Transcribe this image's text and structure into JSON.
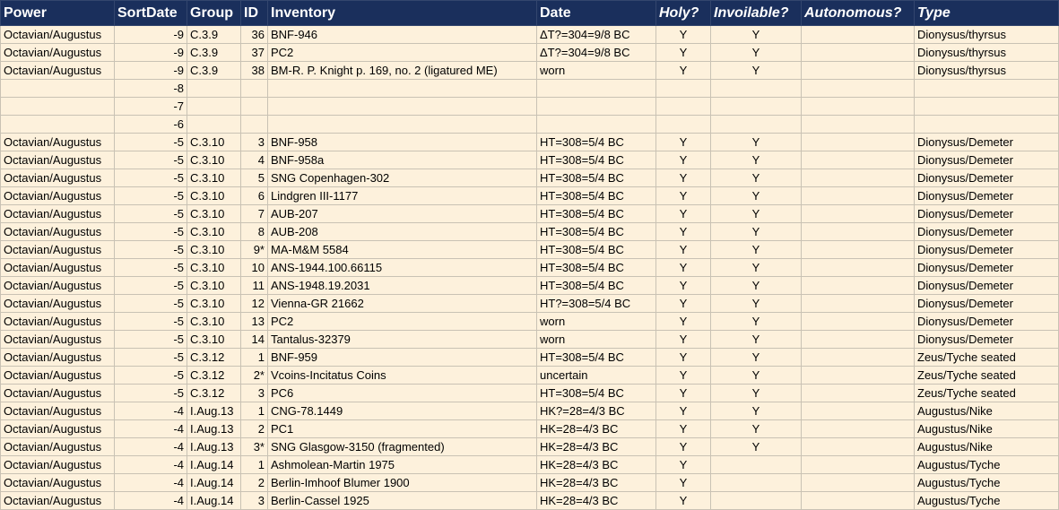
{
  "table": {
    "columns": [
      "Power",
      "SortDate",
      "Group",
      "ID",
      "Inventory",
      "Date",
      "Holy?",
      "Invoilable?",
      "Autonomous?",
      "Type"
    ],
    "rows": [
      [
        "Octavian/Augustus",
        -9,
        "C.3.9",
        36,
        "BNF-946",
        "ΔT?=304=9/8 BC",
        "Y",
        "Y",
        null,
        "Dionysus/thyrsus"
      ],
      [
        "Octavian/Augustus",
        -9,
        "C.3.9",
        37,
        "PC2",
        "ΔT?=304=9/8 BC",
        "Y",
        "Y",
        null,
        "Dionysus/thyrsus"
      ],
      [
        "Octavian/Augustus",
        -9,
        "C.3.9",
        38,
        "BM-R. P. Knight p. 169, no. 2 (ligatured ME)",
        "worn",
        "Y",
        "Y",
        null,
        "Dionysus/thyrsus"
      ],
      [
        null,
        -8,
        null,
        null,
        null,
        null,
        null,
        null,
        null,
        null
      ],
      [
        null,
        -7,
        null,
        null,
        null,
        null,
        null,
        null,
        null,
        null
      ],
      [
        null,
        -6,
        null,
        null,
        null,
        null,
        null,
        null,
        null,
        null
      ],
      [
        "Octavian/Augustus",
        -5,
        "C.3.10",
        3,
        "BNF-958",
        "HT=308=5/4 BC",
        "Y",
        "Y",
        null,
        "Dionysus/Demeter"
      ],
      [
        "Octavian/Augustus",
        -5,
        "C.3.10",
        4,
        "BNF-958a",
        "HT=308=5/4 BC",
        "Y",
        "Y",
        null,
        "Dionysus/Demeter"
      ],
      [
        "Octavian/Augustus",
        -5,
        "C.3.10",
        5,
        "SNG Copenhagen-302",
        "HT=308=5/4 BC",
        "Y",
        "Y",
        null,
        "Dionysus/Demeter"
      ],
      [
        "Octavian/Augustus",
        -5,
        "C.3.10",
        6,
        "Lindgren III-1177",
        "HT=308=5/4 BC",
        "Y",
        "Y",
        null,
        "Dionysus/Demeter"
      ],
      [
        "Octavian/Augustus",
        -5,
        "C.3.10",
        7,
        "AUB-207",
        "HT=308=5/4 BC",
        "Y",
        "Y",
        null,
        "Dionysus/Demeter"
      ],
      [
        "Octavian/Augustus",
        -5,
        "C.3.10",
        8,
        "AUB-208",
        "HT=308=5/4 BC",
        "Y",
        "Y",
        null,
        "Dionysus/Demeter"
      ],
      [
        "Octavian/Augustus",
        -5,
        "C.3.10",
        "9*",
        "MA-M&M 5584",
        "HT=308=5/4 BC",
        "Y",
        "Y",
        null,
        "Dionysus/Demeter"
      ],
      [
        "Octavian/Augustus",
        -5,
        "C.3.10",
        10,
        "ANS-1944.100.66115",
        "HT=308=5/4 BC",
        "Y",
        "Y",
        null,
        "Dionysus/Demeter"
      ],
      [
        "Octavian/Augustus",
        -5,
        "C.3.10",
        11,
        "ANS-1948.19.2031",
        "HT=308=5/4 BC",
        "Y",
        "Y",
        null,
        "Dionysus/Demeter"
      ],
      [
        "Octavian/Augustus",
        -5,
        "C.3.10",
        12,
        "Vienna-GR 21662",
        "HT?=308=5/4 BC",
        "Y",
        "Y",
        null,
        "Dionysus/Demeter"
      ],
      [
        "Octavian/Augustus",
        -5,
        "C.3.10",
        13,
        "PC2",
        "worn",
        "Y",
        "Y",
        null,
        "Dionysus/Demeter"
      ],
      [
        "Octavian/Augustus",
        -5,
        "C.3.10",
        14,
        "Tantalus-32379",
        "worn",
        "Y",
        "Y",
        null,
        "Dionysus/Demeter"
      ],
      [
        "Octavian/Augustus",
        -5,
        "C.3.12",
        1,
        "BNF-959",
        "HT=308=5/4 BC",
        "Y",
        "Y",
        null,
        "Zeus/Tyche seated"
      ],
      [
        "Octavian/Augustus",
        -5,
        "C.3.12",
        "2*",
        "Vcoins-Incitatus Coins",
        "uncertain",
        "Y",
        "Y",
        null,
        "Zeus/Tyche seated"
      ],
      [
        "Octavian/Augustus",
        -5,
        "C.3.12",
        3,
        "PC6",
        "HT=308=5/4 BC",
        "Y",
        "Y",
        null,
        "Zeus/Tyche seated"
      ],
      [
        "Octavian/Augustus",
        -4,
        "I.Aug.13",
        1,
        "CNG-78.1449",
        "HK?=28=4/3 BC",
        "Y",
        "Y",
        null,
        "Augustus/Nike"
      ],
      [
        "Octavian/Augustus",
        -4,
        "I.Aug.13",
        2,
        "PC1",
        "HK=28=4/3 BC",
        "Y",
        "Y",
        null,
        "Augustus/Nike"
      ],
      [
        "Octavian/Augustus",
        -4,
        "I.Aug.13",
        "3*",
        "SNG Glasgow-3150 (fragmented)",
        "HK=28=4/3 BC",
        "Y",
        "Y",
        null,
        "Augustus/Nike"
      ],
      [
        "Octavian/Augustus",
        -4,
        "I.Aug.14",
        1,
        "Ashmolean-Martin 1975",
        "HK=28=4/3 BC",
        "Y",
        null,
        null,
        "Augustus/Tyche"
      ],
      [
        "Octavian/Augustus",
        -4,
        "I.Aug.14",
        2,
        "Berlin-Imhoof Blumer 1900",
        "HK=28=4/3 BC",
        "Y",
        null,
        null,
        "Augustus/Tyche"
      ],
      [
        "Octavian/Augustus",
        -4,
        "I.Aug.14",
        3,
        "Berlin-Cassel 1925",
        "HK=28=4/3 BC",
        "Y",
        null,
        null,
        "Augustus/Tyche"
      ]
    ]
  }
}
